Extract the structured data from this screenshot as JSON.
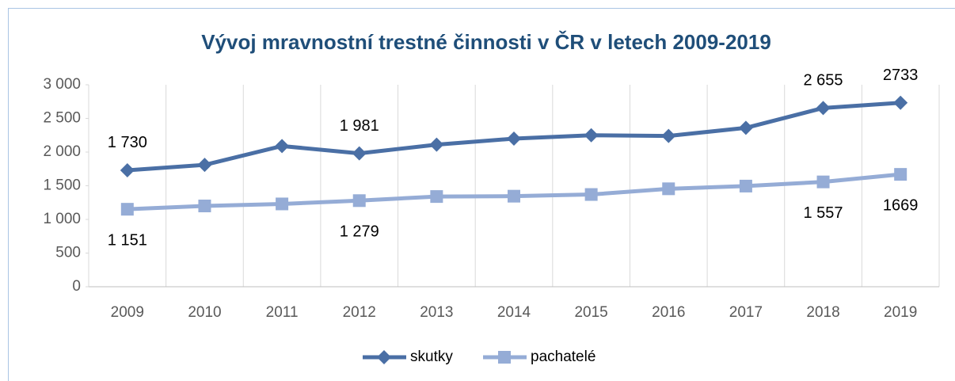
{
  "chart_data": {
    "type": "line",
    "title": "Vývoj mravnostní trestné činnosti v ČR v letech 2009-2019",
    "categories": [
      "2009",
      "2010",
      "2011",
      "2012",
      "2013",
      "2014",
      "2015",
      "2016",
      "2017",
      "2018",
      "2019"
    ],
    "series": [
      {
        "name": "skutky",
        "color": "#4a6fa5",
        "marker": "diamond",
        "values": [
          1730,
          1810,
          2090,
          1981,
          2110,
          2200,
          2250,
          2240,
          2360,
          2655,
          2733
        ],
        "value_labels": [
          "1 730",
          null,
          null,
          "1 981",
          null,
          null,
          null,
          null,
          null,
          "2 655",
          "2733"
        ]
      },
      {
        "name": "pachatelé",
        "color": "#95acd6",
        "marker": "square",
        "values": [
          1151,
          1200,
          1230,
          1279,
          1340,
          1345,
          1370,
          1455,
          1495,
          1557,
          1669
        ],
        "value_labels": [
          "1 151",
          null,
          null,
          "1 279",
          null,
          null,
          null,
          null,
          null,
          "1 557",
          "1669"
        ]
      }
    ],
    "ylim": [
      0,
      3000
    ],
    "yticks": [
      0,
      500,
      {
        "value": 1000,
        "label": "1 000"
      },
      {
        "value": 1500,
        "label": "1 500"
      },
      {
        "value": 2000,
        "label": "2 000"
      },
      {
        "value": 2500,
        "label": "2 500"
      },
      {
        "value": 3000,
        "label": "3 000"
      }
    ],
    "legend": "bottom"
  }
}
